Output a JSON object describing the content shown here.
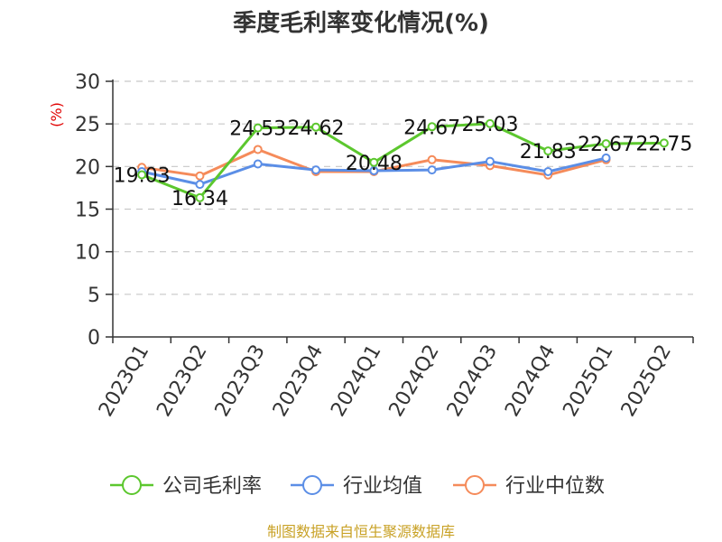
{
  "title": "季度毛利率变化情况(%)",
  "source": "制图数据来自恒生聚源数据库",
  "chart_data": {
    "type": "line",
    "title": "季度毛利率变化情况(%)",
    "ylabel": "(%)",
    "xlabel": "",
    "ylim": [
      0,
      30
    ],
    "yticks": [
      "0",
      "5",
      "10",
      "15",
      "20",
      "25",
      "30"
    ],
    "categories": [
      "2023Q1",
      "2023Q2",
      "2023Q3",
      "2023Q4",
      "2024Q1",
      "2024Q2",
      "2024Q3",
      "2024Q4",
      "2025Q1",
      "2025Q2"
    ],
    "grid": true,
    "legend_position": "bottom",
    "series": [
      {
        "name": "公司毛利率",
        "color": "#5cc72e",
        "values": [
          19.03,
          16.34,
          24.53,
          24.62,
          20.48,
          24.67,
          25.03,
          21.83,
          22.67,
          22.75
        ],
        "labels": [
          "19.03",
          "16.34",
          "24.53",
          "24.62",
          "20.48",
          "24.67",
          "25.03",
          "21.83",
          "22.67",
          "22.75"
        ]
      },
      {
        "name": "行业均值",
        "color": "#5b8ee6",
        "values": [
          19.4,
          17.9,
          20.3,
          19.6,
          19.5,
          19.6,
          20.6,
          19.4,
          21.0,
          null
        ]
      },
      {
        "name": "行业中位数",
        "color": "#f58b5a",
        "values": [
          19.9,
          18.9,
          22.0,
          19.4,
          19.4,
          20.8,
          20.1,
          19.0,
          20.8,
          null
        ]
      }
    ]
  }
}
